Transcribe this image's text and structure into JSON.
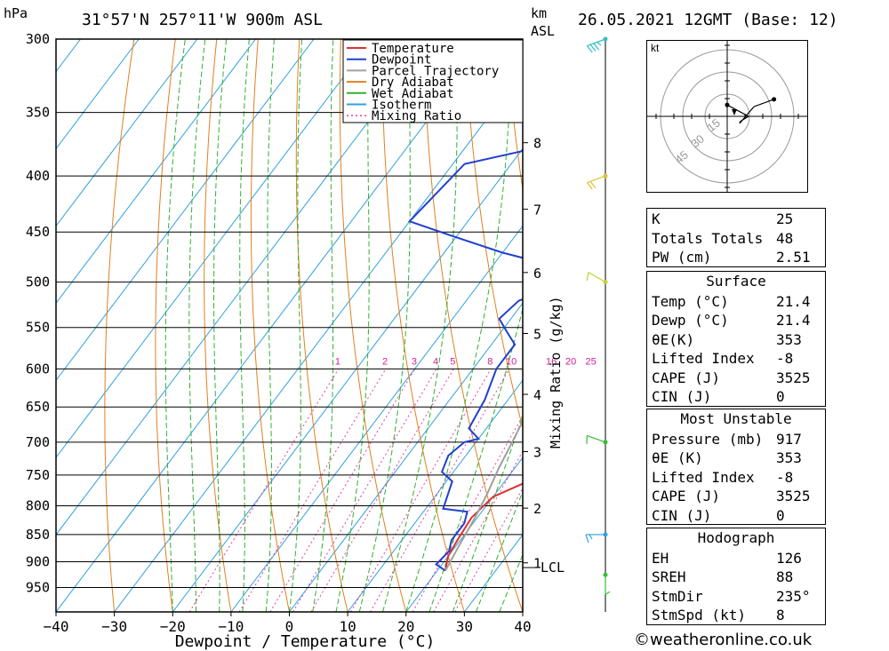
{
  "header": {
    "unit_left": "hPa",
    "location": "31°57'N  257°11'W  900m  ASL",
    "unit_km": "km",
    "unit_asl": "ASL",
    "datetime": "26.05.2021  12GMT  (Base: 12)"
  },
  "legend": {
    "items": [
      {
        "label": "Temperature",
        "color": "#e03030",
        "style": "solid"
      },
      {
        "label": "Dewpoint",
        "color": "#2040d0",
        "style": "solid"
      },
      {
        "label": "Parcel Trajectory",
        "color": "#a0a0a0",
        "style": "solid"
      },
      {
        "label": "Dry Adiabat",
        "color": "#e08020",
        "style": "solid"
      },
      {
        "label": "Wet Adiabat",
        "color": "#30b030",
        "style": "solid"
      },
      {
        "label": "Isotherm",
        "color": "#30a0e0",
        "style": "solid"
      },
      {
        "label": "Mixing Ratio",
        "color": "#e040a0",
        "style": "dotted"
      }
    ]
  },
  "chart_data": {
    "type": "line",
    "xlabel": "Dewpoint / Temperature (°C)",
    "x_ticks": [
      -40,
      -30,
      -20,
      -10,
      0,
      10,
      20,
      30,
      40
    ],
    "xlim": [
      -40,
      40
    ],
    "ylim": [
      1000,
      300
    ],
    "y_ticks": [
      300,
      350,
      400,
      450,
      500,
      550,
      600,
      650,
      700,
      750,
      800,
      850,
      900,
      950
    ],
    "yscale": "log",
    "km_ticks": [
      {
        "label": "8",
        "p": 373
      },
      {
        "label": "7",
        "p": 429
      },
      {
        "label": "6",
        "p": 490
      },
      {
        "label": "5",
        "p": 557
      },
      {
        "label": "4",
        "p": 633
      },
      {
        "label": "3",
        "p": 714
      },
      {
        "label": "2",
        "p": 804
      },
      {
        "label": "1",
        "p": 902
      }
    ],
    "lcl_label": "LCL",
    "lcl_p": 911,
    "mixing_ratio_label": "Mixing Ratio (g/kg)",
    "mixing_ratio_values": [
      "1",
      "2",
      "3",
      "4",
      "5",
      "8",
      "10",
      "16",
      "20",
      "25"
    ],
    "grid": true,
    "series": [
      {
        "name": "Temperature",
        "color": "#e03030",
        "points": [
          [
            21.4,
            917
          ],
          [
            20,
            890
          ],
          [
            19.5,
            860
          ],
          [
            19,
            820
          ],
          [
            20,
            785
          ],
          [
            24,
            760
          ],
          [
            23,
            730
          ],
          [
            22,
            710
          ],
          [
            20,
            680
          ],
          [
            17,
            640
          ],
          [
            14,
            600
          ],
          [
            12,
            570
          ],
          [
            11,
            540
          ],
          [
            8,
            515
          ],
          [
            9,
            500
          ],
          [
            8,
            480
          ],
          [
            5,
            460
          ],
          [
            2,
            430
          ],
          [
            -1,
            400
          ],
          [
            -5,
            370
          ],
          [
            -7,
            350
          ],
          [
            -10,
            330
          ],
          [
            -14,
            300
          ]
        ]
      },
      {
        "name": "Dewpoint",
        "color": "#2040d0",
        "points": [
          [
            21.4,
            917
          ],
          [
            19,
            905
          ],
          [
            19.5,
            880
          ],
          [
            18.5,
            860
          ],
          [
            18.5,
            830
          ],
          [
            17.5,
            810
          ],
          [
            13,
            805
          ],
          [
            11,
            760
          ],
          [
            8,
            745
          ],
          [
            7,
            720
          ],
          [
            8,
            700
          ],
          [
            10,
            695
          ],
          [
            7,
            680
          ],
          [
            6,
            640
          ],
          [
            4,
            600
          ],
          [
            4,
            570
          ],
          [
            1,
            555
          ],
          [
            -2,
            540
          ],
          [
            -1,
            520
          ],
          [
            2,
            510
          ],
          [
            4,
            500
          ],
          [
            -2,
            480
          ],
          [
            -10,
            470
          ],
          [
            -20,
            455
          ],
          [
            -30,
            440
          ],
          [
            -28,
            390
          ],
          [
            -20,
            380
          ],
          [
            -16,
            365
          ],
          [
            -15,
            340
          ],
          [
            -15,
            300
          ]
        ]
      },
      {
        "name": "Parcel Trajectory",
        "color": "#a0a0a0",
        "points": [
          [
            21.4,
            917
          ],
          [
            20.5,
            870
          ],
          [
            19.6,
            820
          ],
          [
            18.6,
            780
          ],
          [
            17.3,
            740
          ],
          [
            16.2,
            700
          ],
          [
            15,
            660
          ],
          [
            13.6,
            620
          ],
          [
            12.1,
            580
          ],
          [
            10.3,
            540
          ],
          [
            8.2,
            500
          ],
          [
            5.7,
            460
          ],
          [
            2.8,
            420
          ],
          [
            -0.7,
            385
          ],
          [
            -4,
            360
          ]
        ]
      }
    ]
  },
  "hodograph": {
    "unit": "kt",
    "ring_labels": [
      "15",
      "30",
      "45"
    ]
  },
  "wind_barbs": [
    {
      "p": 300,
      "speed": 35,
      "dir": 250
    },
    {
      "p": 400,
      "speed": 20,
      "dir": 250
    },
    {
      "p": 500,
      "speed": 10,
      "dir": 300
    },
    {
      "p": 700,
      "speed": 10,
      "dir": 290
    },
    {
      "p": 850,
      "speed": 15,
      "dir": 270
    },
    {
      "p": 925,
      "speed": 8,
      "dir": 180
    }
  ],
  "indices": [
    {
      "label": "K",
      "value": "25"
    },
    {
      "label": "Totals Totals",
      "value": "48"
    },
    {
      "label": "PW (cm)",
      "value": "2.51"
    }
  ],
  "surface": {
    "title": "Surface",
    "rows": [
      {
        "label": "Temp (°C)",
        "value": "21.4"
      },
      {
        "label": "Dewp (°C)",
        "value": "21.4"
      },
      {
        "label": "θE(K)",
        "value": "353"
      },
      {
        "label": "Lifted Index",
        "value": "-8"
      },
      {
        "label": "CAPE (J)",
        "value": "3525"
      },
      {
        "label": "CIN (J)",
        "value": "0"
      }
    ]
  },
  "most_unstable": {
    "title": "Most Unstable",
    "rows": [
      {
        "label": "Pressure (mb)",
        "value": "917"
      },
      {
        "label": "θE (K)",
        "value": "353"
      },
      {
        "label": "Lifted Index",
        "value": "-8"
      },
      {
        "label": "CAPE (J)",
        "value": "3525"
      },
      {
        "label": "CIN (J)",
        "value": "0"
      }
    ]
  },
  "hodograph_stats": {
    "title": "Hodograph",
    "rows": [
      {
        "label": "EH",
        "value": "126"
      },
      {
        "label": "SREH",
        "value": "88"
      },
      {
        "label": "StmDir",
        "value": "235°"
      },
      {
        "label": "StmSpd (kt)",
        "value": "8"
      }
    ]
  },
  "footer": {
    "text": "©weatheronline.co.uk"
  }
}
